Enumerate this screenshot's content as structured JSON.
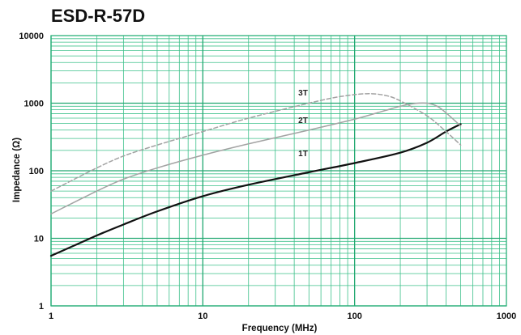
{
  "chart_data": {
    "type": "line",
    "title": "ESD-R-57D",
    "xlabel": "Frequency (MHz)",
    "ylabel": "Impedance (Ω)",
    "x_scale": "log",
    "y_scale": "log",
    "xlim": [
      1,
      1000
    ],
    "ylim": [
      1,
      10000
    ],
    "x_ticks": [
      "1",
      "10",
      "100",
      "1000"
    ],
    "y_ticks": [
      "1",
      "10",
      "100",
      "1000",
      "10000"
    ],
    "grid": true,
    "legend": "none",
    "series": [
      {
        "name": "1T",
        "color": "#111111",
        "style": "solid",
        "x": [
          1,
          2,
          3,
          5,
          10,
          20,
          50,
          100,
          200,
          300,
          400,
          500
        ],
        "y": [
          5.5,
          11,
          16,
          25,
          42,
          62,
          95,
          130,
          185,
          260,
          380,
          490
        ]
      },
      {
        "name": "2T",
        "color": "#a3a3a3",
        "style": "solid",
        "x": [
          1,
          2,
          3,
          5,
          10,
          20,
          50,
          100,
          150,
          200,
          250,
          300,
          350,
          400,
          500
        ],
        "y": [
          23,
          50,
          75,
          110,
          170,
          250,
          400,
          580,
          750,
          900,
          990,
          1000,
          900,
          720,
          460
        ]
      },
      {
        "name": "3T",
        "color": "#a3a3a3",
        "style": "dashed",
        "x": [
          1,
          2,
          3,
          5,
          10,
          20,
          50,
          80,
          120,
          160,
          200,
          300,
          400,
          500
        ],
        "y": [
          50,
          110,
          165,
          240,
          380,
          600,
          1000,
          1250,
          1380,
          1300,
          1080,
          650,
          380,
          240
        ]
      }
    ]
  }
}
